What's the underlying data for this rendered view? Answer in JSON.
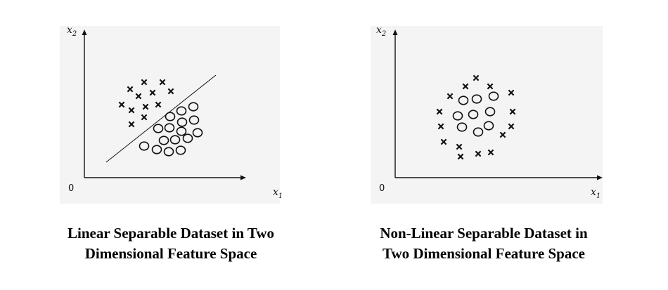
{
  "left_plot": {
    "y_axis_label": "x",
    "y_axis_sub": "2",
    "x_axis_label": "x",
    "x_axis_sub": "1",
    "origin": "0",
    "caption_line1": "Linear Separable Dataset in Two",
    "caption_line2": "Dimensional Feature Space"
  },
  "right_plot": {
    "y_axis_label": "x",
    "y_axis_sub": "2",
    "x_axis_label": "x",
    "x_axis_sub": "1",
    "origin": "0",
    "caption_line1": "Non-Linear Separable Dataset in",
    "caption_line2": "Two Dimensional Feature Space"
  },
  "colors": {
    "ink": "#111111",
    "panel": "#f4f4f4"
  }
}
